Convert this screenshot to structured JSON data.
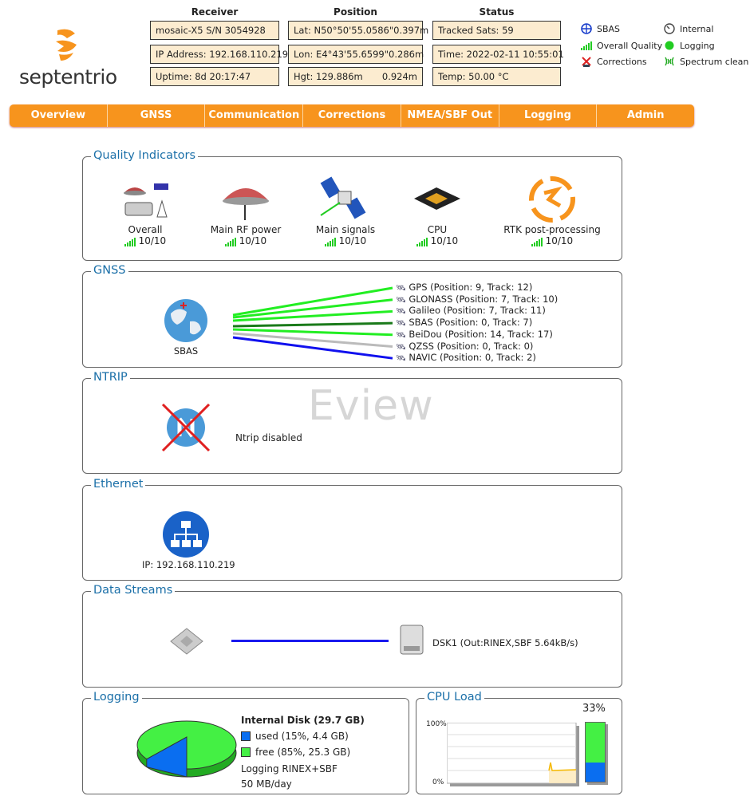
{
  "brand": {
    "name": "septentrio",
    "accent": "#f7941d"
  },
  "header": {
    "receiver": {
      "title": "Receiver",
      "rows": [
        "mosaic-X5 S/N 3054928",
        "IP Address: 192.168.110.219",
        "Uptime: 8d 20:17:47"
      ]
    },
    "position": {
      "title": "Position",
      "rows": [
        {
          "label": "Lat:  N50°50'55.0586\"",
          "acc": "0.397m"
        },
        {
          "label": "Lon: E4°43'55.6599\"",
          "acc": "0.286m"
        },
        {
          "label": "Hgt: 129.886m",
          "acc": "0.924m"
        }
      ]
    },
    "status": {
      "title": "Status",
      "rows": [
        "Tracked Sats: 59",
        "Time: 2022-02-11 10:55:01",
        "Temp: 50.00 °C"
      ]
    },
    "legend": [
      {
        "icon": "sbas-icon",
        "label": "SBAS"
      },
      {
        "icon": "clock-icon",
        "label": "Internal"
      },
      {
        "icon": "signal-bars-icon",
        "label": "Overall Quality"
      },
      {
        "icon": "logging-led-icon",
        "label": "Logging"
      },
      {
        "icon": "corrections-icon",
        "label": "Corrections"
      },
      {
        "icon": "spectrum-icon",
        "label": "Spectrum clean"
      }
    ]
  },
  "nav": [
    "Overview",
    "GNSS",
    "Communication",
    "Corrections",
    "NMEA/SBF Out",
    "Logging",
    "Admin"
  ],
  "quality": {
    "title": "Quality Indicators",
    "items": [
      {
        "label": "Overall",
        "score": "10/10"
      },
      {
        "label": "Main RF power",
        "score": "10/10"
      },
      {
        "label": "Main signals",
        "score": "10/10"
      },
      {
        "label": "CPU",
        "score": "10/10"
      },
      {
        "label": "RTK post-processing",
        "score": "10/10"
      }
    ]
  },
  "gnss": {
    "title": "GNSS",
    "globe_label": "SBAS",
    "constellations": [
      {
        "text": "GPS (Position: 9, Track: 12)",
        "color": "#22ee22"
      },
      {
        "text": "GLONASS (Position: 7, Track: 10)",
        "color": "#22ee22"
      },
      {
        "text": "Galileo (Position: 7, Track: 11)",
        "color": "#22ee22"
      },
      {
        "text": "SBAS (Position: 0, Track: 7)",
        "color": "#1a7a1a"
      },
      {
        "text": "BeiDou (Position: 14, Track: 17)",
        "color": "#22ee22"
      },
      {
        "text": "QZSS (Position: 0, Track: 0)",
        "color": "#bbbbbb"
      },
      {
        "text": "NAVIC (Position: 0, Track: 2)",
        "color": "#1010ee"
      }
    ]
  },
  "ntrip": {
    "title": "NTRIP",
    "status": "Ntrip disabled",
    "watermark": "Eview"
  },
  "ethernet": {
    "title": "Ethernet",
    "ip": "IP: 192.168.110.219"
  },
  "streams": {
    "title": "Data Streams",
    "target": "DSK1 (Out:RINEX,SBF 5.64kB/s)"
  },
  "logging": {
    "title": "Logging",
    "disk": "Internal Disk (29.7 GB)",
    "used": "used (15%, 4.4 GB)",
    "free": "free (85%, 25.3 GB)",
    "used_pct": 15,
    "mode": "Logging RINEX+SBF",
    "rate": "50 MB/day",
    "used_color": "#0a6ef0",
    "free_color": "#44f044"
  },
  "cpu": {
    "title": "CPU Load",
    "current": "33%",
    "current_pct": 33,
    "ymax": "100%",
    "ymin": "0%"
  }
}
